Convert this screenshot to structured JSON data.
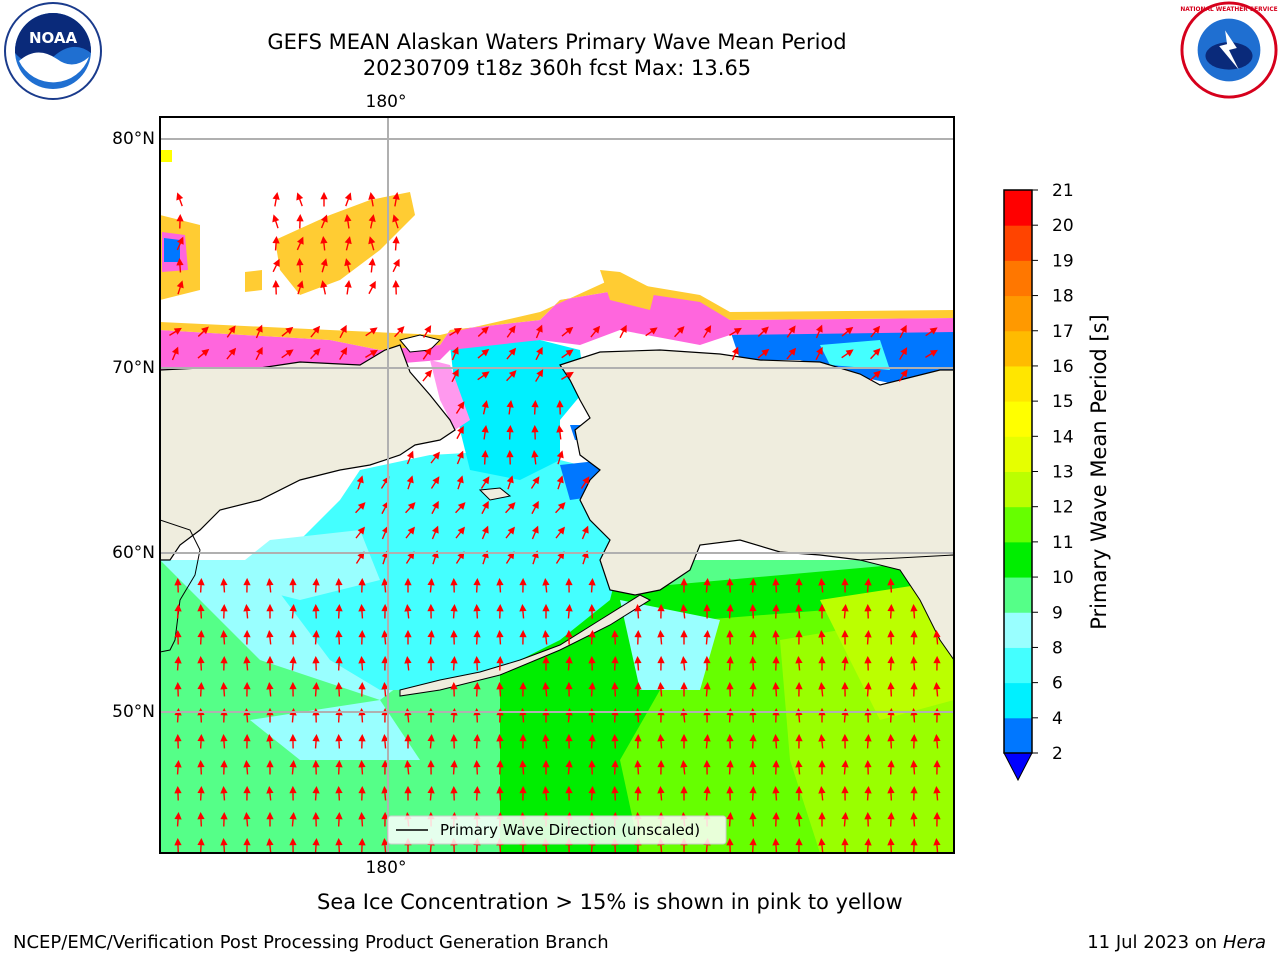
{
  "title": {
    "line1": "GEFS MEAN Alaskan Waters Primary Wave Mean Period",
    "line2": "20230709 t18z 360h fcst   Max: 13.65"
  },
  "logos": {
    "left": "NOAA",
    "right": "NATIONAL WEATHER SERVICE"
  },
  "map": {
    "lon_label_top": "180°",
    "lon_label_bottom": "180°",
    "lat_labels": [
      "80°N",
      "70°N",
      "60°N",
      "50°N"
    ],
    "legend_label": "Primary Wave Direction (unscaled)",
    "colors": {
      "land": "#efedde",
      "arrow": "#ff0000",
      "grid": "#b0b0b0"
    }
  },
  "colorbar": {
    "label": "Primary Wave Mean Period [s]",
    "ticks": [
      "2",
      "4",
      "6",
      "8",
      "9",
      "10",
      "11",
      "12",
      "13",
      "14",
      "15",
      "16",
      "17",
      "18",
      "19",
      "20",
      "21"
    ],
    "colors": [
      "#0077ff",
      "#00f0ff",
      "#44ffff",
      "#99ffff",
      "#55ff88",
      "#00ee00",
      "#66ff00",
      "#bbff00",
      "#e6ff00",
      "#ffff00",
      "#ffe600",
      "#ffbb00",
      "#ff9900",
      "#ff7700",
      "#ff4400",
      "#ff0000"
    ],
    "underflow_color": "#0000ff"
  },
  "caption": "Sea Ice Concentration > 15% is shown in pink to yellow",
  "footer": {
    "left": "NCEP/EMC/Verification Post Processing Product Generation Branch",
    "right_date": "11 Jul 2023 on ",
    "right_machine": "Hera"
  }
}
